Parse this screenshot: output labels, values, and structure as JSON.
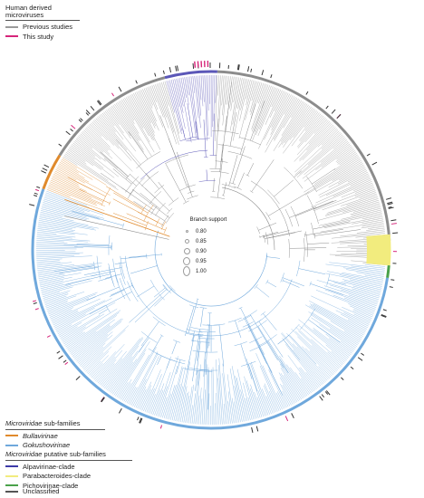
{
  "legend_top": {
    "title": "Human derived microviruses",
    "items": [
      {
        "label": "Previous studies",
        "color": "#9a9a9a"
      },
      {
        "label": "This study",
        "color": "#d6257a"
      }
    ]
  },
  "legend_subfamilies": {
    "title_italic": "Microviridae",
    "title_rest": " sub-families",
    "items": [
      {
        "label": "Bullavirinae",
        "color": "#e08a2c"
      },
      {
        "label": "Gokushovirinae",
        "color": "#6fa8dc"
      }
    ]
  },
  "legend_putative": {
    "title_italic": "Microviridae",
    "title_rest": " putative sub-families",
    "items": [
      {
        "label": "Alpavirinae-clade",
        "color": "#3d3aa8"
      },
      {
        "label": "Parabacteroides-clade",
        "color": "#f2ec7e"
      },
      {
        "label": "Pichovirinae-clade",
        "color": "#4aa24a"
      }
    ]
  },
  "legend_unclassified": {
    "label": "Unclassified",
    "color": "#555555"
  },
  "branch_support": {
    "title": "Branch support",
    "levels": [
      "0.80",
      "0.85",
      "0.90",
      "0.95",
      "1.00"
    ]
  },
  "colors": {
    "gray_branch": "#8c8c8c",
    "blue_branch": "#6fa8dc",
    "purple_branch": "#5b57b8",
    "orange_branch": "#e08a2c",
    "yellow_band": "#f2ec7e",
    "green_band": "#4aa24a",
    "pink_mark": "#d6257a"
  }
}
